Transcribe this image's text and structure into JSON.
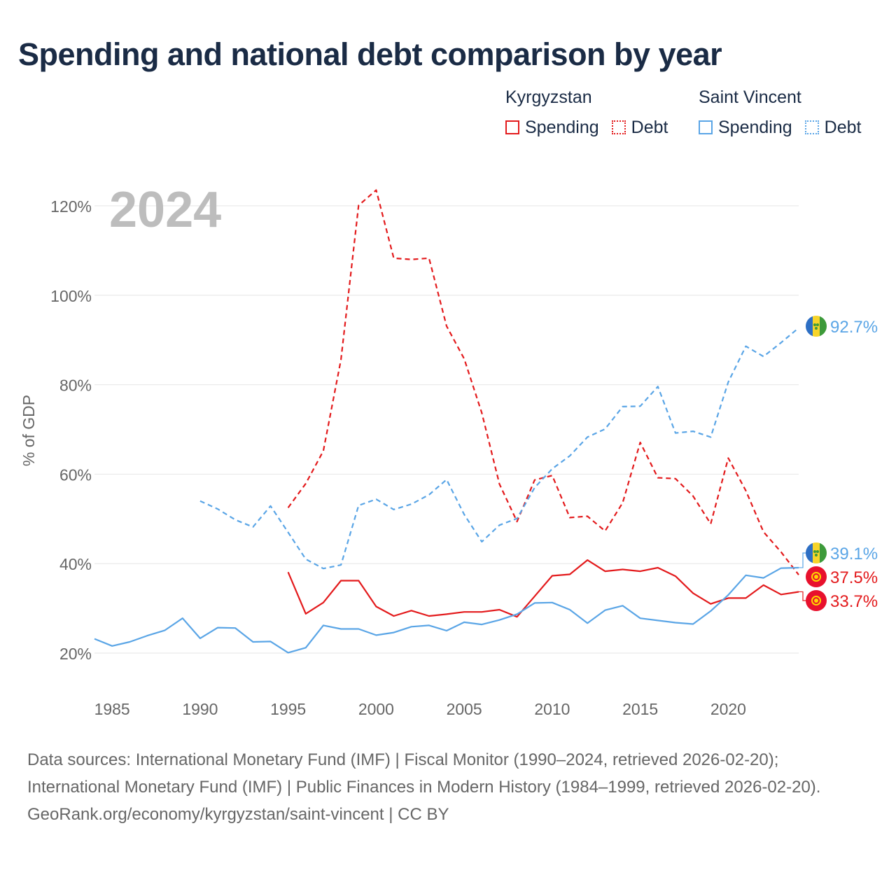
{
  "title": "Spending and national debt comparison by year",
  "legend": {
    "groups": [
      {
        "country": "Kyrgyzstan",
        "spending": "Spending",
        "debt": "Debt",
        "color": "#e31a1c"
      },
      {
        "country": "Saint Vincent",
        "spending": "Spending",
        "debt": "Debt",
        "color": "#5aa5e6"
      }
    ]
  },
  "year_label": "2024",
  "footer": {
    "sources": "Data sources: International Monetary Fund (IMF) | Fiscal Monitor (1990–2024, retrieved 2026-02-20); International Monetary Fund (IMF) | Public Finances in Modern History (1984–1999, retrieved 2026-02-20).",
    "credit": "GeoRank.org/economy/kyrgyzstan/saint-vincent | CC BY"
  },
  "chart_data": {
    "type": "line",
    "title": "Spending and national debt comparison by year",
    "xlabel": "",
    "ylabel": "% of GDP",
    "xlim": [
      1984,
      2024
    ],
    "ylim": [
      10,
      130
    ],
    "x_ticks": [
      1985,
      1990,
      1995,
      2000,
      2005,
      2010,
      2015,
      2020
    ],
    "y_ticks": [
      20,
      40,
      60,
      80,
      100,
      120
    ],
    "y_tick_labels": [
      "20%",
      "40%",
      "60%",
      "80%",
      "100%",
      "120%"
    ],
    "grid": true,
    "legend_position": "top-right",
    "series": [
      {
        "name": "Kyrgyzstan Debt",
        "country": "Kyrgyzstan",
        "kind": "debt",
        "color": "#e31a1c",
        "dashed": true,
        "x": [
          1995,
          1996,
          1997,
          1998,
          1999,
          2000,
          2001,
          2002,
          2003,
          2004,
          2005,
          2006,
          2007,
          2008,
          2009,
          2010,
          2011,
          2012,
          2013,
          2014,
          2015,
          2016,
          2017,
          2018,
          2019,
          2020,
          2021,
          2022,
          2023,
          2024
        ],
        "values": [
          52.5,
          57.9,
          65.2,
          85.6,
          120.1,
          123.5,
          108.3,
          108.0,
          108.3,
          93.1,
          85.8,
          73.7,
          57.8,
          49.4,
          58.7,
          59.7,
          50.3,
          50.6,
          47.3,
          53.6,
          67.1,
          59.2,
          59.0,
          55.1,
          48.9,
          63.6,
          56.3,
          47.1,
          42.6,
          37.5
        ],
        "end_label": "37.5%"
      },
      {
        "name": "Kyrgyzstan Spending",
        "country": "Kyrgyzstan",
        "kind": "spending",
        "color": "#e31a1c",
        "dashed": false,
        "x": [
          1995,
          1996,
          1997,
          1998,
          1999,
          2000,
          2001,
          2002,
          2003,
          2004,
          2005,
          2006,
          2007,
          2008,
          2009,
          2010,
          2011,
          2012,
          2013,
          2014,
          2015,
          2016,
          2017,
          2018,
          2019,
          2020,
          2021,
          2022,
          2023,
          2024
        ],
        "values": [
          38.1,
          28.8,
          31.3,
          36.2,
          36.2,
          30.4,
          28.3,
          29.5,
          28.3,
          28.7,
          29.2,
          29.2,
          29.7,
          28.1,
          32.7,
          37.3,
          37.6,
          40.8,
          38.3,
          38.7,
          38.3,
          39.1,
          37.2,
          33.4,
          31.0,
          32.3,
          32.3,
          35.2,
          33.1,
          33.7
        ],
        "end_label": "33.7%"
      },
      {
        "name": "Saint Vincent Debt",
        "country": "Saint Vincent",
        "kind": "debt",
        "color": "#5aa5e6",
        "dashed": true,
        "x": [
          1990,
          1991,
          1992,
          1993,
          1994,
          1995,
          1996,
          1997,
          1998,
          1999,
          2000,
          2001,
          2002,
          2003,
          2004,
          2005,
          2006,
          2007,
          2008,
          2009,
          2010,
          2011,
          2012,
          2013,
          2014,
          2015,
          2016,
          2017,
          2018,
          2019,
          2020,
          2021,
          2022,
          2023,
          2024
        ],
        "values": [
          54.0,
          52.2,
          49.8,
          48.2,
          52.9,
          47.0,
          41.0,
          38.9,
          39.7,
          53.0,
          54.4,
          52.1,
          53.3,
          55.4,
          58.8,
          51.0,
          44.9,
          48.6,
          50.1,
          57.0,
          61.2,
          64.1,
          68.3,
          70.1,
          75.1,
          75.2,
          79.6,
          69.2,
          69.6,
          68.3,
          80.6,
          88.6,
          86.3,
          89.4,
          92.7
        ],
        "end_label": "92.7%"
      },
      {
        "name": "Saint Vincent Spending",
        "country": "Saint Vincent",
        "kind": "spending",
        "color": "#5aa5e6",
        "dashed": false,
        "x": [
          1984,
          1985,
          1986,
          1987,
          1988,
          1989,
          1990,
          1991,
          1992,
          1993,
          1994,
          1995,
          1996,
          1997,
          1998,
          1999,
          2000,
          2001,
          2002,
          2003,
          2004,
          2005,
          2006,
          2007,
          2008,
          2009,
          2010,
          2011,
          2012,
          2013,
          2014,
          2015,
          2016,
          2017,
          2018,
          2019,
          2020,
          2021,
          2022,
          2023,
          2024
        ],
        "values": [
          23.2,
          21.6,
          22.5,
          23.9,
          25.1,
          27.8,
          23.3,
          25.7,
          25.6,
          22.5,
          22.6,
          20.1,
          21.2,
          26.2,
          25.4,
          25.4,
          24.0,
          24.6,
          25.9,
          26.2,
          25.0,
          26.9,
          26.4,
          27.4,
          28.7,
          31.2,
          31.3,
          29.7,
          26.7,
          29.6,
          30.6,
          27.8,
          27.3,
          26.8,
          26.5,
          29.4,
          33.0,
          37.4,
          36.8,
          39.0,
          39.1
        ],
        "end_label": "39.1%"
      }
    ]
  }
}
